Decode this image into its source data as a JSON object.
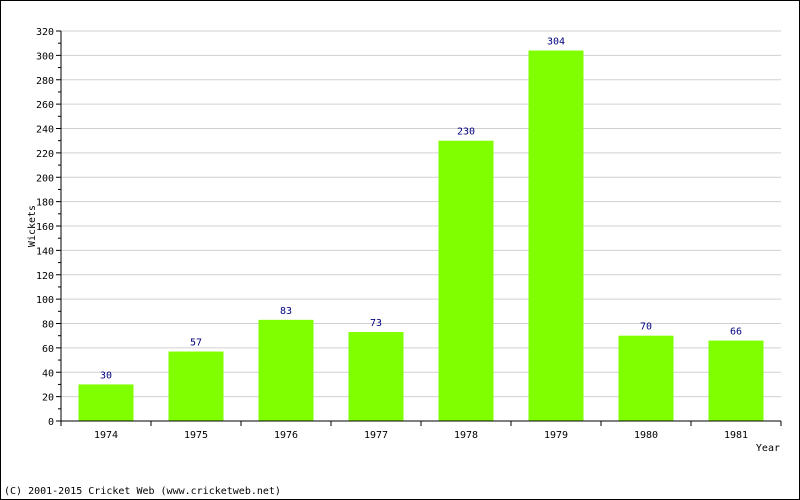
{
  "chart_data": {
    "type": "bar",
    "categories": [
      "1974",
      "1975",
      "1976",
      "1977",
      "1978",
      "1979",
      "1980",
      "1981"
    ],
    "values": [
      30,
      57,
      83,
      73,
      230,
      304,
      70,
      66
    ],
    "xlabel": "Year",
    "ylabel": "Wickets",
    "ylim": [
      0,
      320
    ],
    "ytick_step": 20,
    "grid": true,
    "bar_color": "#7fff00",
    "data_label_color": "#000080"
  },
  "footer": {
    "copyright": "(C) 2001-2015 Cricket Web (www.cricketweb.net)"
  }
}
